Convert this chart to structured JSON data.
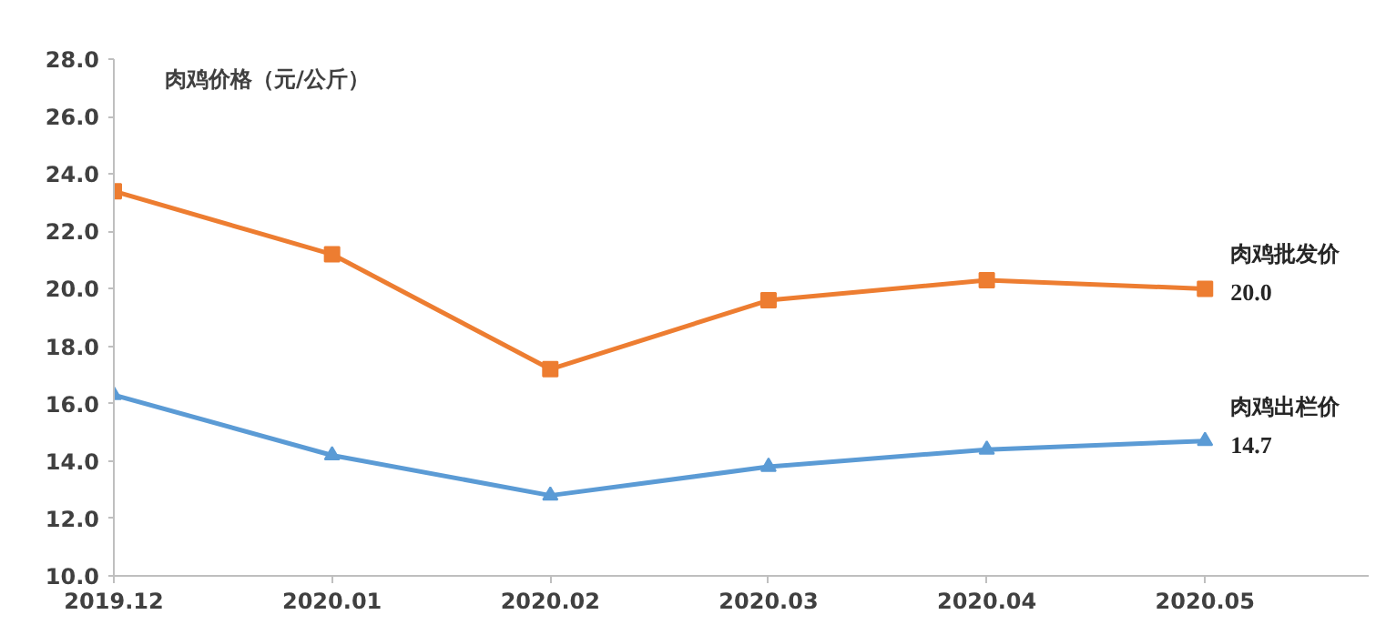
{
  "chart_data": {
    "type": "line",
    "ylabel": "肉鸡价格（元/公斤）",
    "categories": [
      "2019.12",
      "2020.01",
      "2020.02",
      "2020.03",
      "2020.04",
      "2020.05"
    ],
    "ylim": [
      10,
      28
    ],
    "yticks": [
      {
        "value": 10,
        "label": "10.0"
      },
      {
        "value": 12,
        "label": "12.0"
      },
      {
        "value": 14,
        "label": "14.0"
      },
      {
        "value": 16,
        "label": "16.0"
      },
      {
        "value": 18,
        "label": "18.0"
      },
      {
        "value": 20,
        "label": "20.0"
      },
      {
        "value": 22,
        "label": "22.0"
      },
      {
        "value": 24,
        "label": "24.0"
      },
      {
        "value": 26,
        "label": "26.0"
      },
      {
        "value": 28,
        "label": "28.0"
      }
    ],
    "grid": false,
    "legend": false,
    "series": [
      {
        "name": "肉鸡批发价",
        "color": "#ed7d31",
        "marker": "square",
        "values": [
          23.4,
          21.2,
          17.2,
          19.6,
          20.3,
          20.0
        ],
        "value_labels": [
          null,
          null,
          null,
          null,
          null,
          "20.0"
        ]
      },
      {
        "name": "肉鸡出栏价",
        "color": "#5b9bd5",
        "marker": "triangle",
        "values": [
          16.3,
          14.2,
          12.8,
          13.8,
          14.4,
          14.7
        ],
        "value_labels": [
          null,
          null,
          null,
          null,
          null,
          "14.7"
        ]
      }
    ]
  }
}
